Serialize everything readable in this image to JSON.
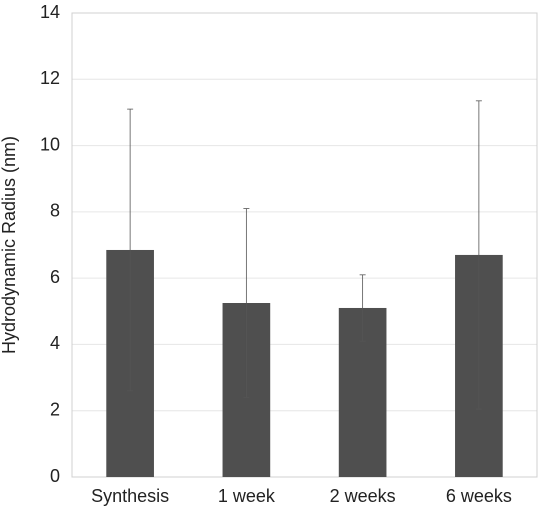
{
  "chart_data": {
    "type": "bar",
    "y_label": "Hydrodynamic Radius (nm)",
    "categories": [
      "Synthesis",
      "1 week",
      "2 weeks",
      "6 weeks"
    ],
    "values": [
      6.85,
      5.25,
      5.1,
      6.7
    ],
    "errors": [
      4.25,
      2.85,
      1.0,
      4.65
    ],
    "color": "#4f4f4f",
    "ylim": [
      0,
      14
    ],
    "yticks": [
      0,
      2,
      4,
      6,
      8,
      10,
      12,
      14
    ],
    "grid": true
  }
}
